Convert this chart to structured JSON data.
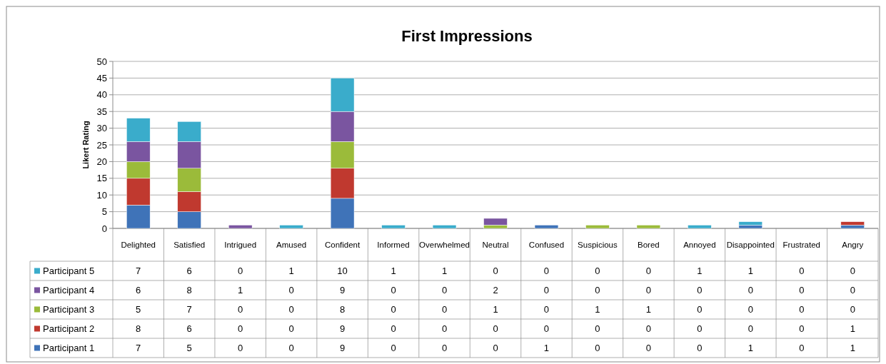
{
  "chart_data": {
    "type": "bar",
    "title": "First Impressions",
    "ylabel": "Likert Rating",
    "categories": [
      "Delighted",
      "Satisfied",
      "Intrigued",
      "Amused",
      "Confident",
      "Informed",
      "Overwhelmed",
      "Neutral",
      "Confused",
      "Suspicious",
      "Bored",
      "Annoyed",
      "Disappointed",
      "Frustrated",
      "Angry"
    ],
    "stacked": true,
    "data_labels": true,
    "legend": "bottom left",
    "grid": "y",
    "ylim": [
      0,
      50
    ],
    "yticks": [
      0,
      5,
      10,
      15,
      20,
      25,
      30,
      35,
      40,
      45,
      50
    ],
    "series": [
      {
        "name": "Participant 1",
        "color": "#3f73b8",
        "values": [
          7,
          5,
          0,
          0,
          9,
          0,
          0,
          0,
          1,
          0,
          0,
          0,
          1,
          0,
          1
        ]
      },
      {
        "name": "Participant 2",
        "color": "#c0392f",
        "values": [
          8,
          6,
          0,
          0,
          9,
          0,
          0,
          0,
          0,
          0,
          0,
          0,
          0,
          0,
          1
        ]
      },
      {
        "name": "Participant 3",
        "color": "#9bbb3a",
        "values": [
          5,
          7,
          0,
          0,
          8,
          0,
          0,
          1,
          0,
          1,
          1,
          0,
          0,
          0,
          0
        ]
      },
      {
        "name": "Participant 4",
        "color": "#7a55a0",
        "values": [
          6,
          8,
          1,
          0,
          9,
          0,
          0,
          2,
          0,
          0,
          0,
          0,
          0,
          0,
          0
        ]
      },
      {
        "name": "Participant 5",
        "color": "#3aaccb",
        "values": [
          7,
          6,
          0,
          1,
          10,
          1,
          1,
          0,
          0,
          0,
          0,
          1,
          1,
          0,
          0
        ]
      }
    ]
  }
}
